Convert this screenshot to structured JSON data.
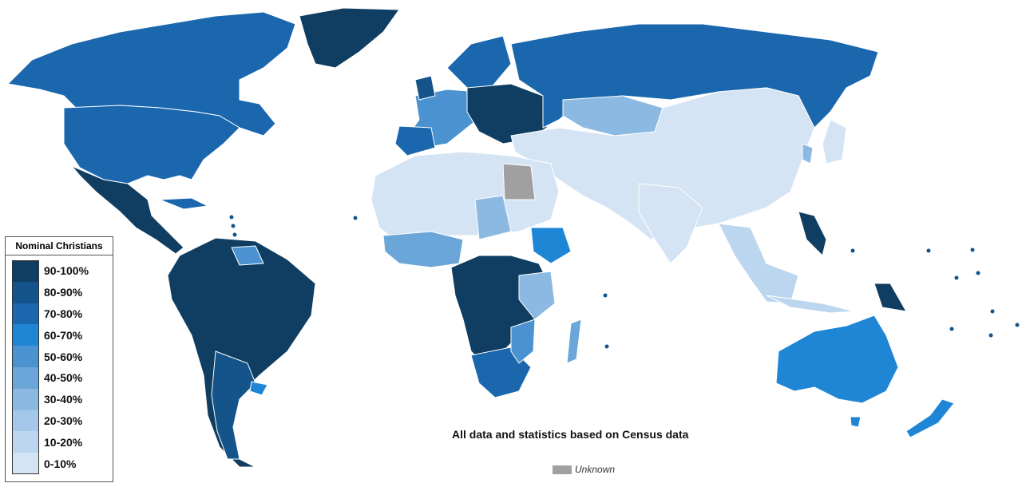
{
  "legend": {
    "title": "Nominal Christians",
    "items": [
      {
        "label": "90-100%",
        "color": "#0f3e62"
      },
      {
        "label": "80-90%",
        "color": "#14548a"
      },
      {
        "label": "70-80%",
        "color": "#1a67ae"
      },
      {
        "label": "60-70%",
        "color": "#1f86d6"
      },
      {
        "label": "50-60%",
        "color": "#4a93d0"
      },
      {
        "label": "40-50%",
        "color": "#6aa6d8"
      },
      {
        "label": "30-40%",
        "color": "#8cb9e2"
      },
      {
        "label": "20-30%",
        "color": "#a5c8ea"
      },
      {
        "label": "10-20%",
        "color": "#bcd6ef"
      },
      {
        "label": "0-10%",
        "color": "#d4e4f5"
      }
    ]
  },
  "note": "All data and statistics based on Census data",
  "unknown": {
    "label": "Unknown",
    "color": "#a0a0a0"
  }
}
